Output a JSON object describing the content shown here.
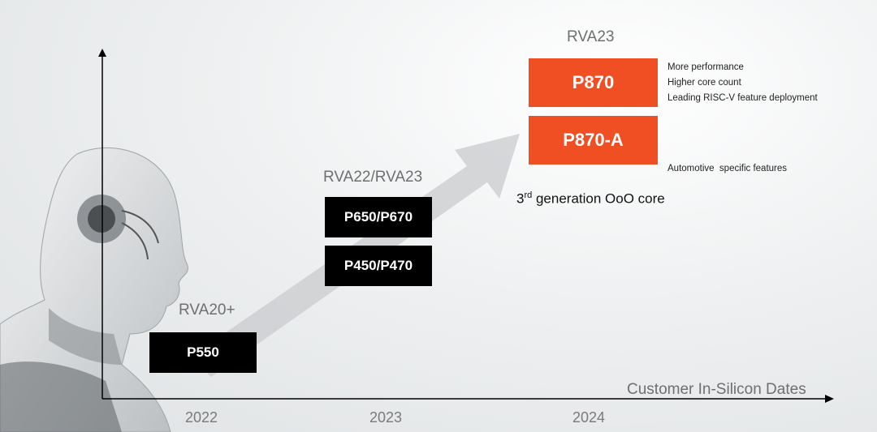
{
  "colors": {
    "accent": "#f04e23",
    "dark_box": "#000000",
    "arrow": "#c9cbcd"
  },
  "axis": {
    "label": "Customer In-Silicon Dates"
  },
  "years": [
    "2022",
    "2023",
    "2024"
  ],
  "eras": {
    "rva20": "RVA20+",
    "rva22": "RVA22/RVA23",
    "rva23": "RVA23"
  },
  "cores": {
    "p550": "P550",
    "p650": "P650/P670",
    "p450": "P450/P470",
    "p870": "P870",
    "p870a": "P870-A"
  },
  "features": {
    "p870": [
      "More performance",
      "Higher core count",
      "Leading RISC-V feature deployment"
    ],
    "p870a": [
      "Automotive  specific features"
    ]
  },
  "generation": {
    "prefix": "3",
    "superscript": "rd",
    "text": " generation OoO core"
  }
}
